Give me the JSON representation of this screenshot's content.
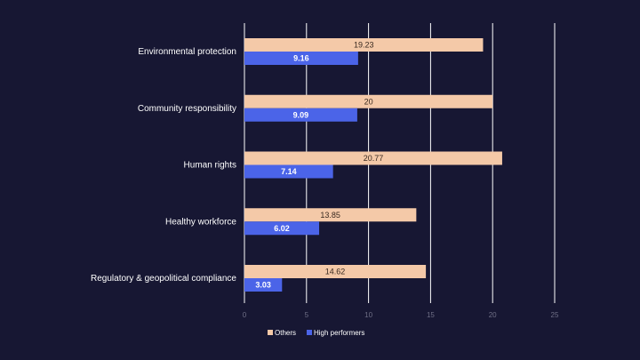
{
  "chart_data": {
    "type": "bar",
    "orientation": "horizontal",
    "categories": [
      "Environmental protection",
      "Community responsibility",
      "Human rights",
      "Healthy workforce",
      "Regulatory & geopolitical compliance"
    ],
    "series": [
      {
        "name": "Others",
        "color": "#f4c9a8",
        "values": [
          19.23,
          20,
          20.77,
          13.85,
          14.62
        ]
      },
      {
        "name": "High performers",
        "color": "#4b64e8",
        "values": [
          9.16,
          9.09,
          7.14,
          6.02,
          3.03
        ]
      }
    ],
    "xlim": [
      0,
      25
    ],
    "xticks": [
      0,
      5,
      10,
      15,
      20,
      25
    ],
    "grid": true,
    "legend_position": "bottom-center",
    "title": "",
    "xlabel": "",
    "ylabel": ""
  }
}
